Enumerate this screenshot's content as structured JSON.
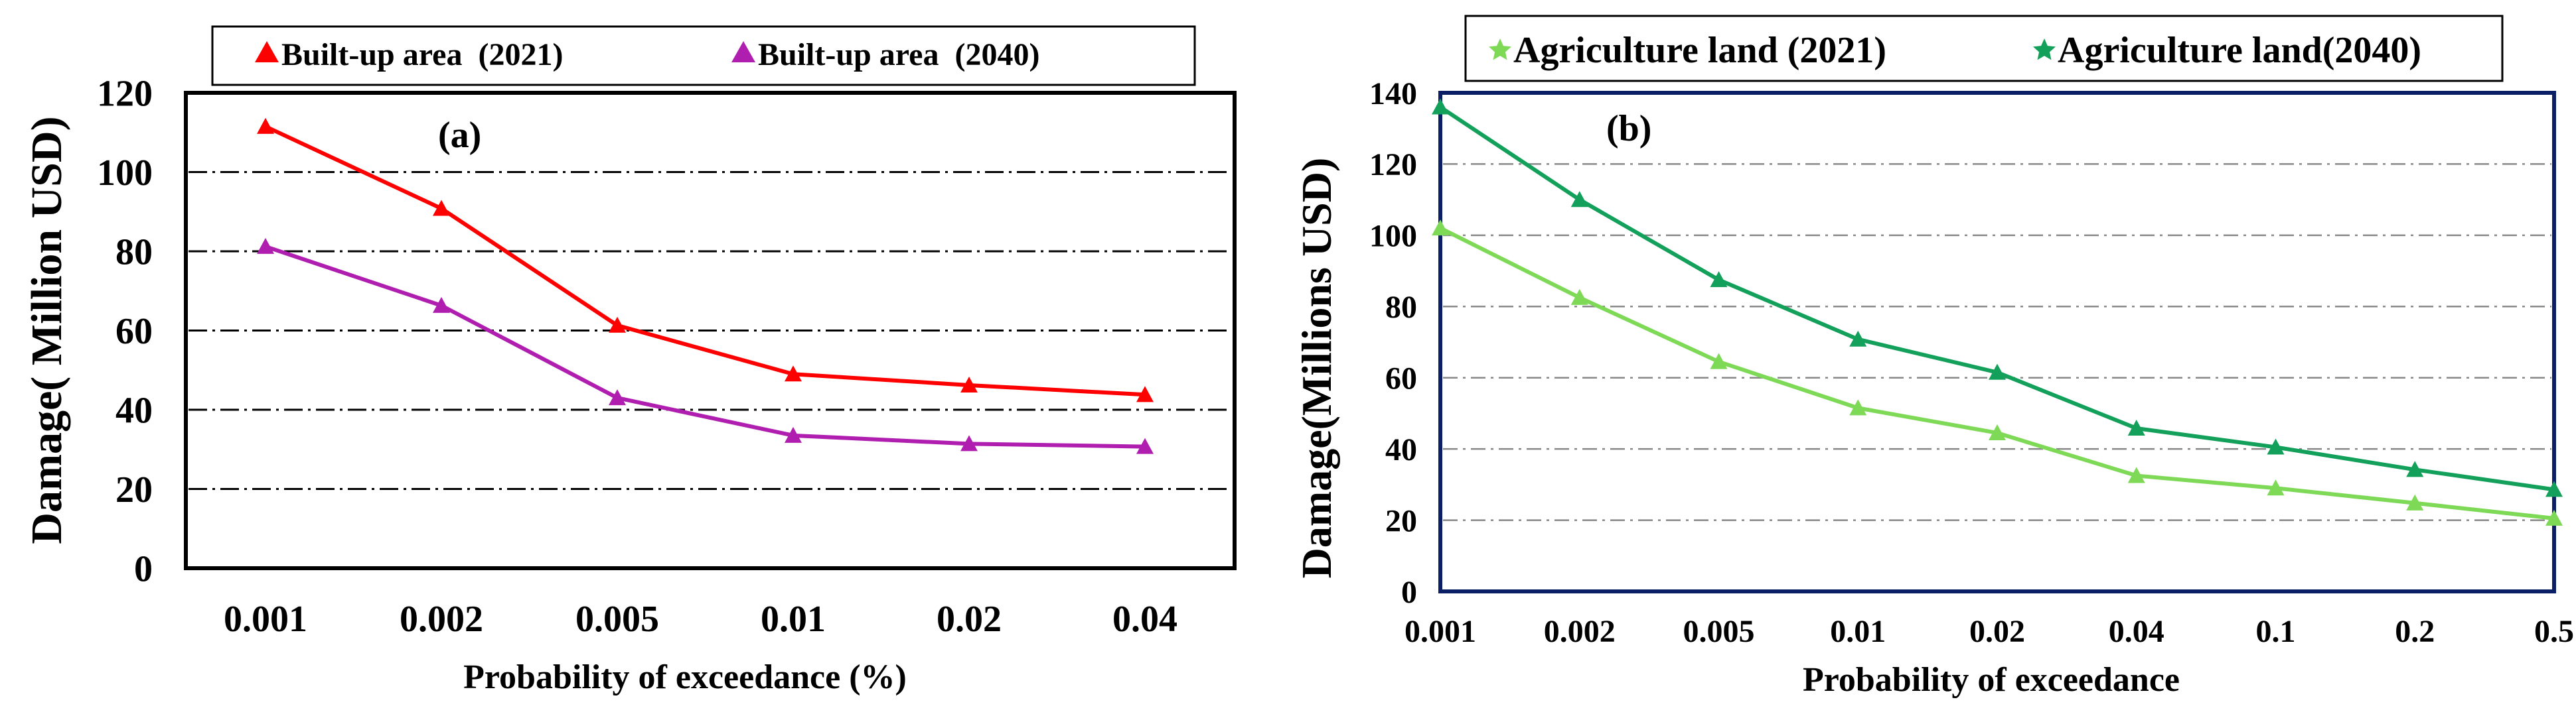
{
  "chart_data": [
    {
      "type": "line",
      "panel_label": "(a)",
      "title": "",
      "xlabel": "Probability of exceedance (%)",
      "ylabel": "Damage( Million USD)",
      "categories": [
        "0.001",
        "0.002",
        "0.005",
        "0.01",
        "0.02",
        "0.04"
      ],
      "ylim": [
        0,
        120
      ],
      "yticks": [
        "0",
        "20",
        "40",
        "60",
        "80",
        "100",
        "120"
      ],
      "grid": "horizontal dash-dot",
      "legend_position": "top",
      "series": [
        {
          "name": "Built-up area  (2021)",
          "color": "#ff0000",
          "marker": "triangle",
          "values": [
            111.5,
            90.8,
            61.3,
            49.0,
            46.2,
            43.8
          ]
        },
        {
          "name": "Built-up area  (2040)",
          "color": "#b01eb0",
          "marker": "triangle",
          "values": [
            81.2,
            66.3,
            43.0,
            33.5,
            31.4,
            30.7
          ]
        }
      ]
    },
    {
      "type": "line",
      "panel_label": "(b)",
      "title": "",
      "xlabel": "Probability of exceedance",
      "ylabel": "Damage(Millions USD)",
      "categories": [
        "0.001",
        "0.002",
        "0.005",
        "0.01",
        "0.02",
        "0.04",
        "0.1",
        "0.2",
        "0.5"
      ],
      "ylim": [
        0,
        140
      ],
      "yticks": [
        "0",
        "20",
        "40",
        "60",
        "80",
        "100",
        "120",
        "140"
      ],
      "grid": "horizontal dash-dot",
      "legend_position": "top",
      "series": [
        {
          "name": "Agriculture land (2021)",
          "color": "#7ed957",
          "marker": "triangle",
          "values": [
            102.0,
            82.5,
            64.5,
            51.5,
            44.5,
            32.5,
            29.0,
            24.8,
            20.5
          ]
        },
        {
          "name": "Agriculture land(2040)",
          "color": "#12a05a",
          "marker": "triangle",
          "values": [
            136.0,
            110.0,
            87.5,
            70.8,
            61.5,
            45.8,
            40.5,
            34.2,
            28.6
          ]
        }
      ]
    }
  ]
}
